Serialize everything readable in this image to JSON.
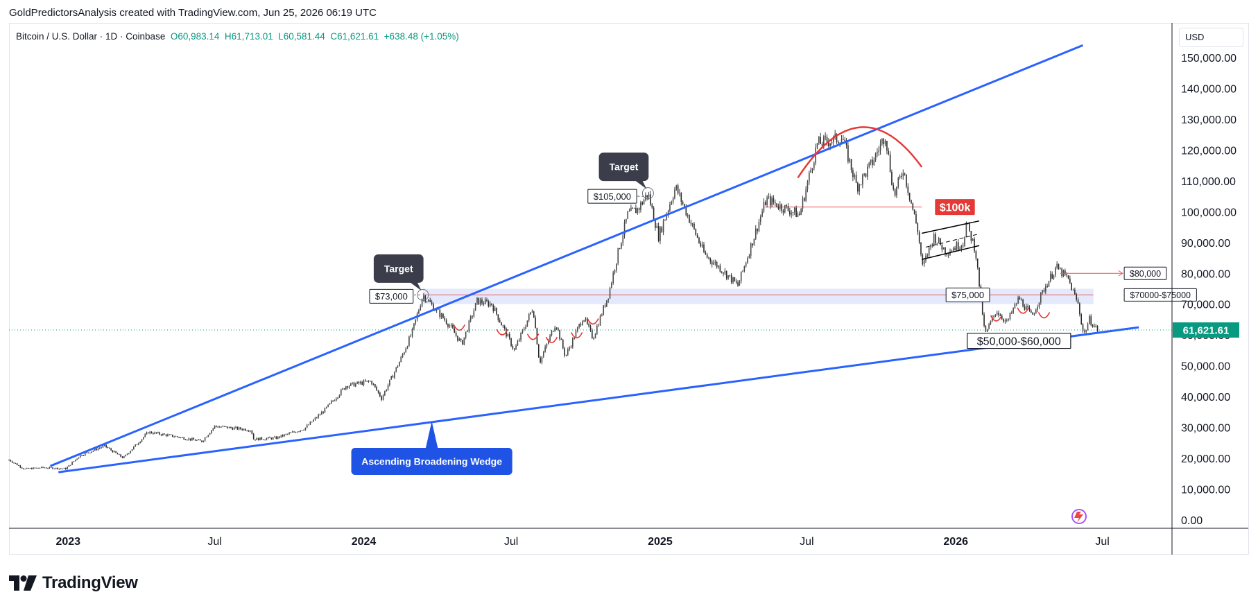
{
  "header": {
    "caption": "GoldPredictorsAnalysis created with TradingView.com, Jun 25, 2026 06:19 UTC"
  },
  "legend": {
    "symbol": "Bitcoin / U.S. Dollar · 1D · Coinbase",
    "open": "O60,983.14",
    "high": "H61,713.01",
    "low": "L60,581.44",
    "close": "C61,621.61",
    "change": "+638.48 (+1.05%)"
  },
  "currency": "USD",
  "price_label": "61,621.61",
  "footer": {
    "brand": "TradingView"
  },
  "colors": {
    "up": "#089981",
    "wedge_line": "#2962ff",
    "arc": "#e53935",
    "badge_dark": "#3b3d4a",
    "badge_red": "#e53935",
    "badge_blue": "#1e53e5",
    "zone_fill": "#dbe3fb"
  },
  "chart_data": {
    "type": "line",
    "title": "",
    "xlabel": "",
    "ylabel": "",
    "x_tick_labels": [
      "2023",
      "Jul",
      "2024",
      "Jul",
      "2025",
      "Jul",
      "2026",
      "Jul"
    ],
    "y_tick_labels": [
      "0.00",
      "10,000.00",
      "20,000.00",
      "30,000.00",
      "40,000.00",
      "50,000.00",
      "60,000.00",
      "70,000.00",
      "80,000.00",
      "90,000.00",
      "100,000.00",
      "110,000.00",
      "120,000.00",
      "130,000.00",
      "140,000.00",
      "150,000.00"
    ],
    "ylim": [
      0,
      155000
    ],
    "xlim": [
      "2022-10-20",
      "2026-09-25"
    ],
    "grid": false,
    "series": [
      {
        "values": [
          [
            "2022-10-20",
            19500
          ],
          [
            "2022-11-08",
            16500
          ],
          [
            "2022-12-01",
            17000
          ],
          [
            "2022-12-29",
            16600
          ],
          [
            "2023-01-15",
            20800
          ],
          [
            "2023-02-15",
            24000
          ],
          [
            "2023-03-10",
            20100
          ],
          [
            "2023-04-10",
            28500
          ],
          [
            "2023-05-15",
            27000
          ],
          [
            "2023-06-15",
            25500
          ],
          [
            "2023-07-01",
            30400
          ],
          [
            "2023-08-15",
            29200
          ],
          [
            "2023-08-18",
            26200
          ],
          [
            "2023-09-15",
            26600
          ],
          [
            "2023-10-20",
            29700
          ],
          [
            "2023-11-15",
            36000
          ],
          [
            "2023-12-10",
            43500
          ],
          [
            "2024-01-10",
            45000
          ],
          [
            "2024-01-23",
            39500
          ],
          [
            "2024-02-15",
            51800
          ],
          [
            "2024-03-01",
            61000
          ],
          [
            "2024-03-14",
            73000
          ],
          [
            "2024-04-15",
            63500
          ],
          [
            "2024-05-01",
            57000
          ],
          [
            "2024-05-20",
            71000
          ],
          [
            "2024-06-07",
            70000
          ],
          [
            "2024-07-05",
            55000
          ],
          [
            "2024-07-28",
            69000
          ],
          [
            "2024-08-05",
            51000
          ],
          [
            "2024-08-25",
            64000
          ],
          [
            "2024-09-06",
            53000
          ],
          [
            "2024-09-28",
            66000
          ],
          [
            "2024-10-10",
            59000
          ],
          [
            "2024-10-29",
            73000
          ],
          [
            "2024-11-12",
            89000
          ],
          [
            "2024-11-22",
            99000
          ],
          [
            "2024-12-05",
            101000
          ],
          [
            "2024-12-17",
            106000
          ],
          [
            "2024-12-30",
            92000
          ],
          [
            "2025-01-20",
            108000
          ],
          [
            "2025-02-25",
            86000
          ],
          [
            "2025-03-15",
            82000
          ],
          [
            "2025-04-07",
            76000
          ],
          [
            "2025-05-12",
            104000
          ],
          [
            "2025-06-05",
            101000
          ],
          [
            "2025-06-22",
            99000
          ],
          [
            "2025-07-14",
            122000
          ],
          [
            "2025-08-14",
            124000
          ],
          [
            "2025-09-01",
            108000
          ],
          [
            "2025-09-20",
            116000
          ],
          [
            "2025-10-06",
            125000
          ],
          [
            "2025-10-17",
            105000
          ],
          [
            "2025-10-28",
            114000
          ],
          [
            "2025-11-15",
            94000
          ],
          [
            "2025-11-21",
            82000
          ],
          [
            "2025-12-05",
            92000
          ],
          [
            "2025-12-20",
            87000
          ],
          [
            "2026-01-10",
            90000
          ],
          [
            "2026-01-14",
            96000
          ],
          [
            "2026-01-25",
            88000
          ],
          [
            "2026-02-06",
            60000
          ],
          [
            "2026-02-20",
            68000
          ],
          [
            "2026-03-05",
            64000
          ],
          [
            "2026-03-20",
            72000
          ],
          [
            "2026-04-05",
            66000
          ],
          [
            "2026-04-20",
            75000
          ],
          [
            "2026-05-05",
            82000
          ],
          [
            "2026-05-20",
            78000
          ],
          [
            "2026-06-01",
            70000
          ],
          [
            "2026-06-08",
            60000
          ],
          [
            "2026-06-15",
            65000
          ],
          [
            "2026-06-25",
            61621
          ]
        ]
      }
    ],
    "current_price": 61621.61,
    "annotations": [
      {
        "kind": "badge",
        "text": "Target",
        "date": "2024-03-14",
        "price": 73000
      },
      {
        "kind": "badge",
        "text": "Target",
        "date": "2024-12-17",
        "price": 106000
      },
      {
        "kind": "label",
        "text": "$73,000",
        "date": "2024-03-14",
        "price": 73000
      },
      {
        "kind": "label",
        "text": "$105,000",
        "date": "2024-12-17",
        "price": 105000
      },
      {
        "kind": "badge",
        "text": "$100k",
        "date": "2025-11-25",
        "price": 101500
      },
      {
        "kind": "label",
        "text": "$75,000",
        "date": "2026-01-20",
        "price": 73000
      },
      {
        "kind": "label",
        "text": "$70000-$75000",
        "date": "2026-07-28",
        "price": 73000
      },
      {
        "kind": "label",
        "text": "$80,000",
        "date": "2026-07-28",
        "price": 80000
      },
      {
        "kind": "label",
        "text": "$50,000-$60,000",
        "date": "2026-03-20",
        "price": 57000
      },
      {
        "kind": "badge",
        "text": "Ascending Broadening Wedge",
        "date": "2024-03-25",
        "price": 19000
      }
    ],
    "trendlines": [
      {
        "name": "upper",
        "from": [
          "2022-12-10",
          17500
        ],
        "to": [
          "2026-06-07",
          154000
        ]
      },
      {
        "name": "lower",
        "from": [
          "2022-12-20",
          15500
        ],
        "to": [
          "2026-08-15",
          62500
        ]
      }
    ],
    "zones": [
      {
        "from_price": 70000,
        "to_price": 75000,
        "from": "2024-03-14",
        "to": "2026-06-20"
      }
    ],
    "horizontal_lines": [
      {
        "price": 101500,
        "from": "2025-05-10",
        "to": "2025-11-20"
      },
      {
        "price": 73000,
        "from": "2024-03-14",
        "to": "2026-06-20"
      }
    ]
  }
}
